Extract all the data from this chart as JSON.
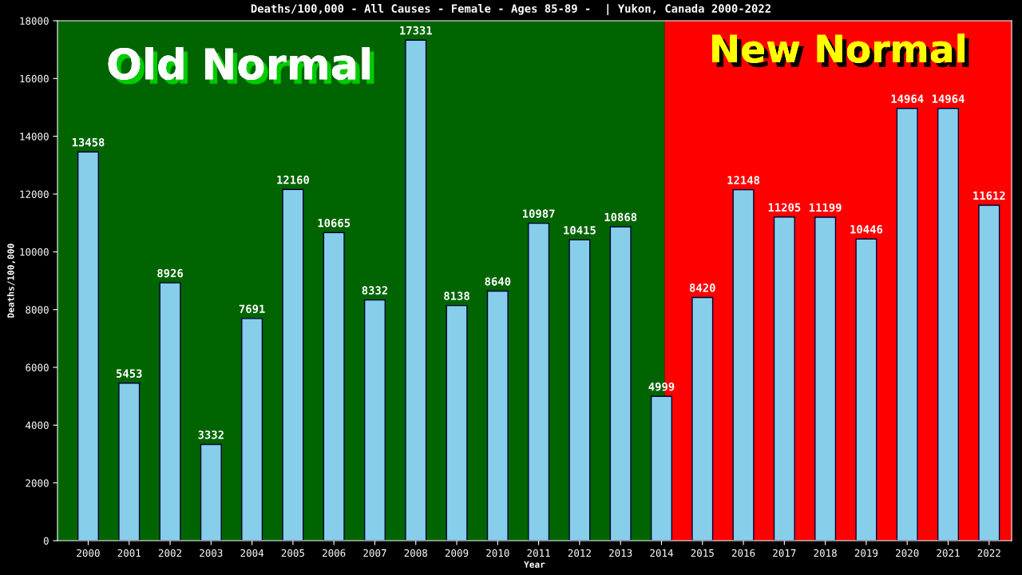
{
  "chart_data": {
    "type": "bar",
    "title": "Deaths/100,000 - All Causes - Female - Ages 85-89 -  | Yukon, Canada 2000-2022",
    "xlabel": "Year",
    "ylabel": "Deaths/100,000",
    "x": [
      2000,
      2001,
      2002,
      2003,
      2004,
      2005,
      2006,
      2007,
      2008,
      2009,
      2010,
      2011,
      2012,
      2013,
      2014,
      2015,
      2016,
      2017,
      2018,
      2019,
      2020,
      2021,
      2022
    ],
    "values": [
      13458,
      5453,
      8926,
      3332,
      7691,
      12160,
      10665,
      8332,
      17331,
      8138,
      8640,
      10987,
      10415,
      10868,
      4999,
      8420,
      12148,
      11205,
      11199,
      10446,
      14964,
      14964,
      11612
    ],
    "color": "#87ceeb",
    "xlim": [
      1999.25,
      2022.55
    ],
    "xticks": [
      2000,
      2001,
      2002,
      2003,
      2004,
      2005,
      2006,
      2007,
      2008,
      2009,
      2010,
      2011,
      2012,
      2013,
      2014,
      2015,
      2016,
      2017,
      2018,
      2019,
      2020,
      2021,
      2022
    ],
    "ylim": [
      0,
      18000
    ],
    "yticks": [
      0,
      2000,
      4000,
      6000,
      8000,
      10000,
      12000,
      14000,
      16000,
      18000
    ],
    "bands": [
      {
        "axis": "x",
        "from": 1999.25,
        "to": 2014.08,
        "label": "Old Normal",
        "color": "#006400"
      },
      {
        "axis": "x",
        "from": 2014.08,
        "to": 2022.55,
        "label": "New Normal",
        "color": "#ff0000"
      }
    ],
    "data_labels": true,
    "grid": false,
    "legend": false
  }
}
